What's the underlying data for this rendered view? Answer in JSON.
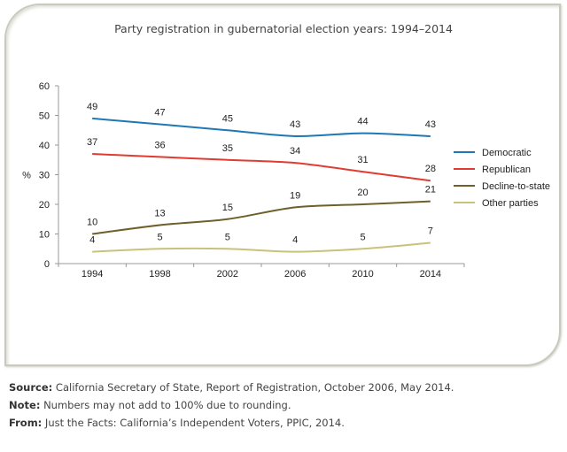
{
  "chart_data": {
    "type": "line",
    "title": "Party registration in gubernatorial election years: 1994–2014",
    "xlabel": "",
    "ylabel": "%",
    "categories": [
      "1994",
      "1998",
      "2002",
      "2006",
      "2010",
      "2014"
    ],
    "ylim": [
      0,
      60
    ],
    "yticks": [
      0,
      10,
      20,
      30,
      40,
      50,
      60
    ],
    "grid": false,
    "legend_position": "right",
    "series": [
      {
        "name": "Democratic",
        "color": "#1f78b4",
        "values": [
          49,
          47,
          45,
          43,
          44,
          43
        ],
        "labels": [
          "49",
          "47",
          "45",
          "43",
          "44",
          "43"
        ]
      },
      {
        "name": "Republican",
        "color": "#e03c31",
        "values": [
          37,
          36,
          35,
          34,
          31,
          28
        ],
        "labels": [
          "37",
          "36",
          "35",
          "34",
          "31",
          "28"
        ]
      },
      {
        "name": "Decline-to-state",
        "color": "#6f5f2a",
        "values": [
          10,
          13,
          15,
          19,
          20,
          21
        ],
        "labels": [
          "10",
          "13",
          "15",
          "19",
          "20",
          "21"
        ]
      },
      {
        "name": "Other parties",
        "color": "#c8c37a",
        "values": [
          4,
          5,
          5,
          4,
          5,
          7
        ],
        "labels": [
          "4",
          "5",
          "5",
          "4",
          "5",
          "7"
        ]
      }
    ]
  },
  "notes": {
    "source_label": "Source:",
    "source_text": " California Secretary of State, Report of Registration, October 2006, May 2014.",
    "note_label": "Note:",
    "note_text": " Numbers may not add to 100% due to rounding.",
    "from_label": "From:",
    "from_text": " Just the Facts: California’s Independent Voters, PPIC, 2014."
  }
}
